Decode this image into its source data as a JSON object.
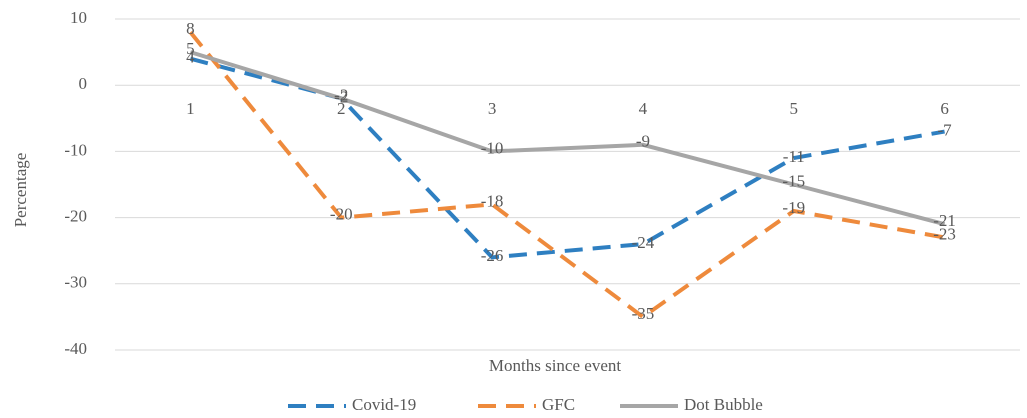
{
  "chart_data": {
    "type": "line",
    "x_label": "Months since event",
    "y_label": "Percentage",
    "categories": [
      "1",
      "2",
      "3",
      "4",
      "5",
      "6"
    ],
    "series": [
      {
        "name": "Covid-19",
        "color": "#2e7fc1",
        "dash": true,
        "values": [
          4,
          -2,
          -26,
          -24,
          -11,
          -7
        ]
      },
      {
        "name": "GFC",
        "color": "#ee8a3c",
        "dash": true,
        "values": [
          8,
          -20,
          -18,
          -35,
          -19,
          -23
        ]
      },
      {
        "name": "Dot Bubble",
        "color": "#a6a6a6",
        "dash": false,
        "values": [
          5,
          -2,
          -10,
          -9,
          -15,
          -21
        ]
      }
    ],
    "ylim": [
      -40,
      10
    ],
    "yticks": [
      -40,
      -30,
      -20,
      -10,
      0,
      10
    ],
    "grid": true,
    "legend": "bottom"
  }
}
